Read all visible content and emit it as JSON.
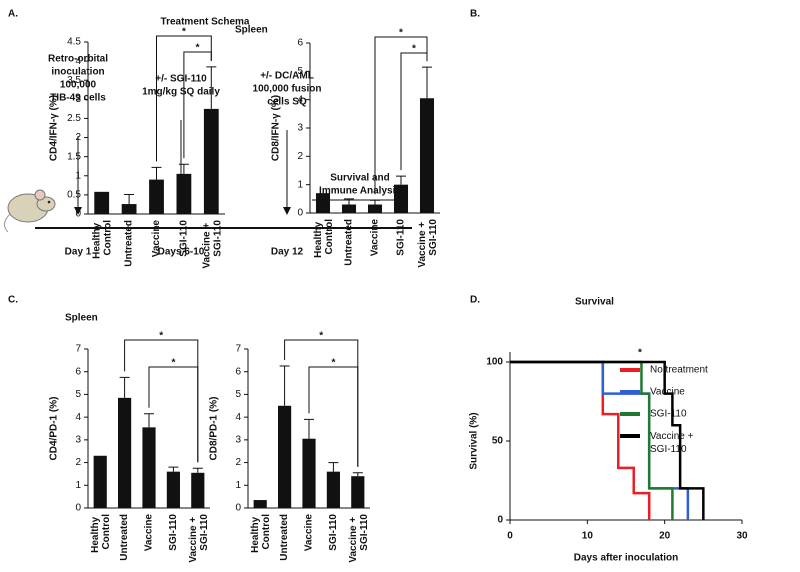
{
  "panel_labels": [
    "A.",
    "B.",
    "C.",
    "D."
  ],
  "schema": {
    "title": "Treatment Schema",
    "events": [
      [
        "Retro-orbital",
        "inoculation",
        "100,000",
        "TIB-49 cells"
      ],
      [
        "+/- SGI-110",
        "1mg/kg SQ daily"
      ],
      [
        "+/- DC/AML",
        "100,000 fusion",
        "cells SQ"
      ],
      [
        "Survival and",
        "Immune Analysis"
      ]
    ],
    "days": [
      "Day 1",
      "Days 6-10",
      "Day 12"
    ]
  },
  "chart_data": [
    {
      "type": "bar",
      "title": "Spleen",
      "ylabel": "CD4/IFN-γ (%)",
      "categories": [
        "Healthy Control",
        "Untreated",
        "Vaccine",
        "SGI-110",
        "Vaccine + SGI-110"
      ],
      "values": [
        0.58,
        0.26,
        0.9,
        1.05,
        2.75
      ],
      "errors": [
        null,
        0.25,
        0.32,
        0.25,
        1.1
      ],
      "ylim": [
        0,
        4.5
      ],
      "yticks": [
        0,
        0.5,
        1,
        1.5,
        2,
        2.5,
        3,
        3.5,
        4,
        4.5
      ],
      "color": "#111111",
      "annotations": [
        "*",
        "*"
      ]
    },
    {
      "type": "bar",
      "ylabel": "CD8/IFN-γ (%)",
      "categories": [
        "Healthy Control",
        "Untreated",
        "Vaccine",
        "SGI-110",
        "Vaccine + SGI-110"
      ],
      "values": [
        0.7,
        0.3,
        0.3,
        1.0,
        4.05
      ],
      "errors": [
        null,
        0.2,
        0.15,
        0.3,
        1.1
      ],
      "ylim": [
        0,
        6
      ],
      "yticks": [
        0,
        1,
        2,
        3,
        4,
        5,
        6
      ],
      "color": "#111111",
      "annotations": [
        "*",
        "*"
      ]
    },
    {
      "type": "bar",
      "title": "Spleen",
      "ylabel": "CD4/PD-1 (%)",
      "categories": [
        "Healthy Control",
        "Untreated",
        "Vaccine",
        "SGI-110",
        "Vaccine + SGI-110"
      ],
      "values": [
        2.3,
        4.85,
        3.55,
        1.6,
        1.55
      ],
      "errors": [
        null,
        0.9,
        0.6,
        0.2,
        0.2
      ],
      "ylim": [
        0,
        7
      ],
      "yticks": [
        0,
        1,
        2,
        3,
        4,
        5,
        6,
        7
      ],
      "color": "#111111",
      "annotations": [
        "*",
        "*"
      ]
    },
    {
      "type": "bar",
      "ylabel": "CD8/PD-1 (%)",
      "categories": [
        "Healthy Control",
        "Untreated",
        "Vaccine",
        "SGI-110",
        "Vaccine + SGI-110"
      ],
      "values": [
        0.35,
        4.5,
        3.05,
        1.6,
        1.4
      ],
      "errors": [
        null,
        1.75,
        0.85,
        0.4,
        0.15
      ],
      "ylim": [
        0,
        7
      ],
      "yticks": [
        0,
        1,
        2,
        3,
        4,
        5,
        6,
        7
      ],
      "color": "#111111",
      "annotations": [
        "*",
        "*"
      ]
    },
    {
      "type": "step",
      "title": "Survival",
      "xlabel": "Days after inoculation",
      "ylabel": "Survival (%)",
      "series": [
        {
          "name": "No treatment",
          "color": "#ee1c24",
          "x": [
            0,
            12,
            14,
            16,
            18
          ],
          "values": [
            100,
            67,
            33,
            17,
            0
          ]
        },
        {
          "name": "Vaccine",
          "color": "#2e5fd8",
          "x": [
            0,
            12,
            18,
            23
          ],
          "values": [
            100,
            80,
            20,
            0
          ]
        },
        {
          "name": "SGI-110",
          "color": "#1e7a32",
          "x": [
            0,
            17,
            18,
            21
          ],
          "values": [
            100,
            80,
            20,
            0
          ]
        },
        {
          "name": "Vaccine + SGI-110",
          "color": "#000000",
          "x": [
            0,
            20,
            21,
            22,
            25
          ],
          "values": [
            100,
            80,
            60,
            20,
            0
          ]
        }
      ],
      "xlim": [
        0,
        30
      ],
      "xticks": [
        0,
        10,
        20,
        30
      ],
      "ylim": [
        0,
        100
      ],
      "yticks": [
        0,
        50,
        100
      ],
      "annotations": [
        "*"
      ]
    }
  ]
}
